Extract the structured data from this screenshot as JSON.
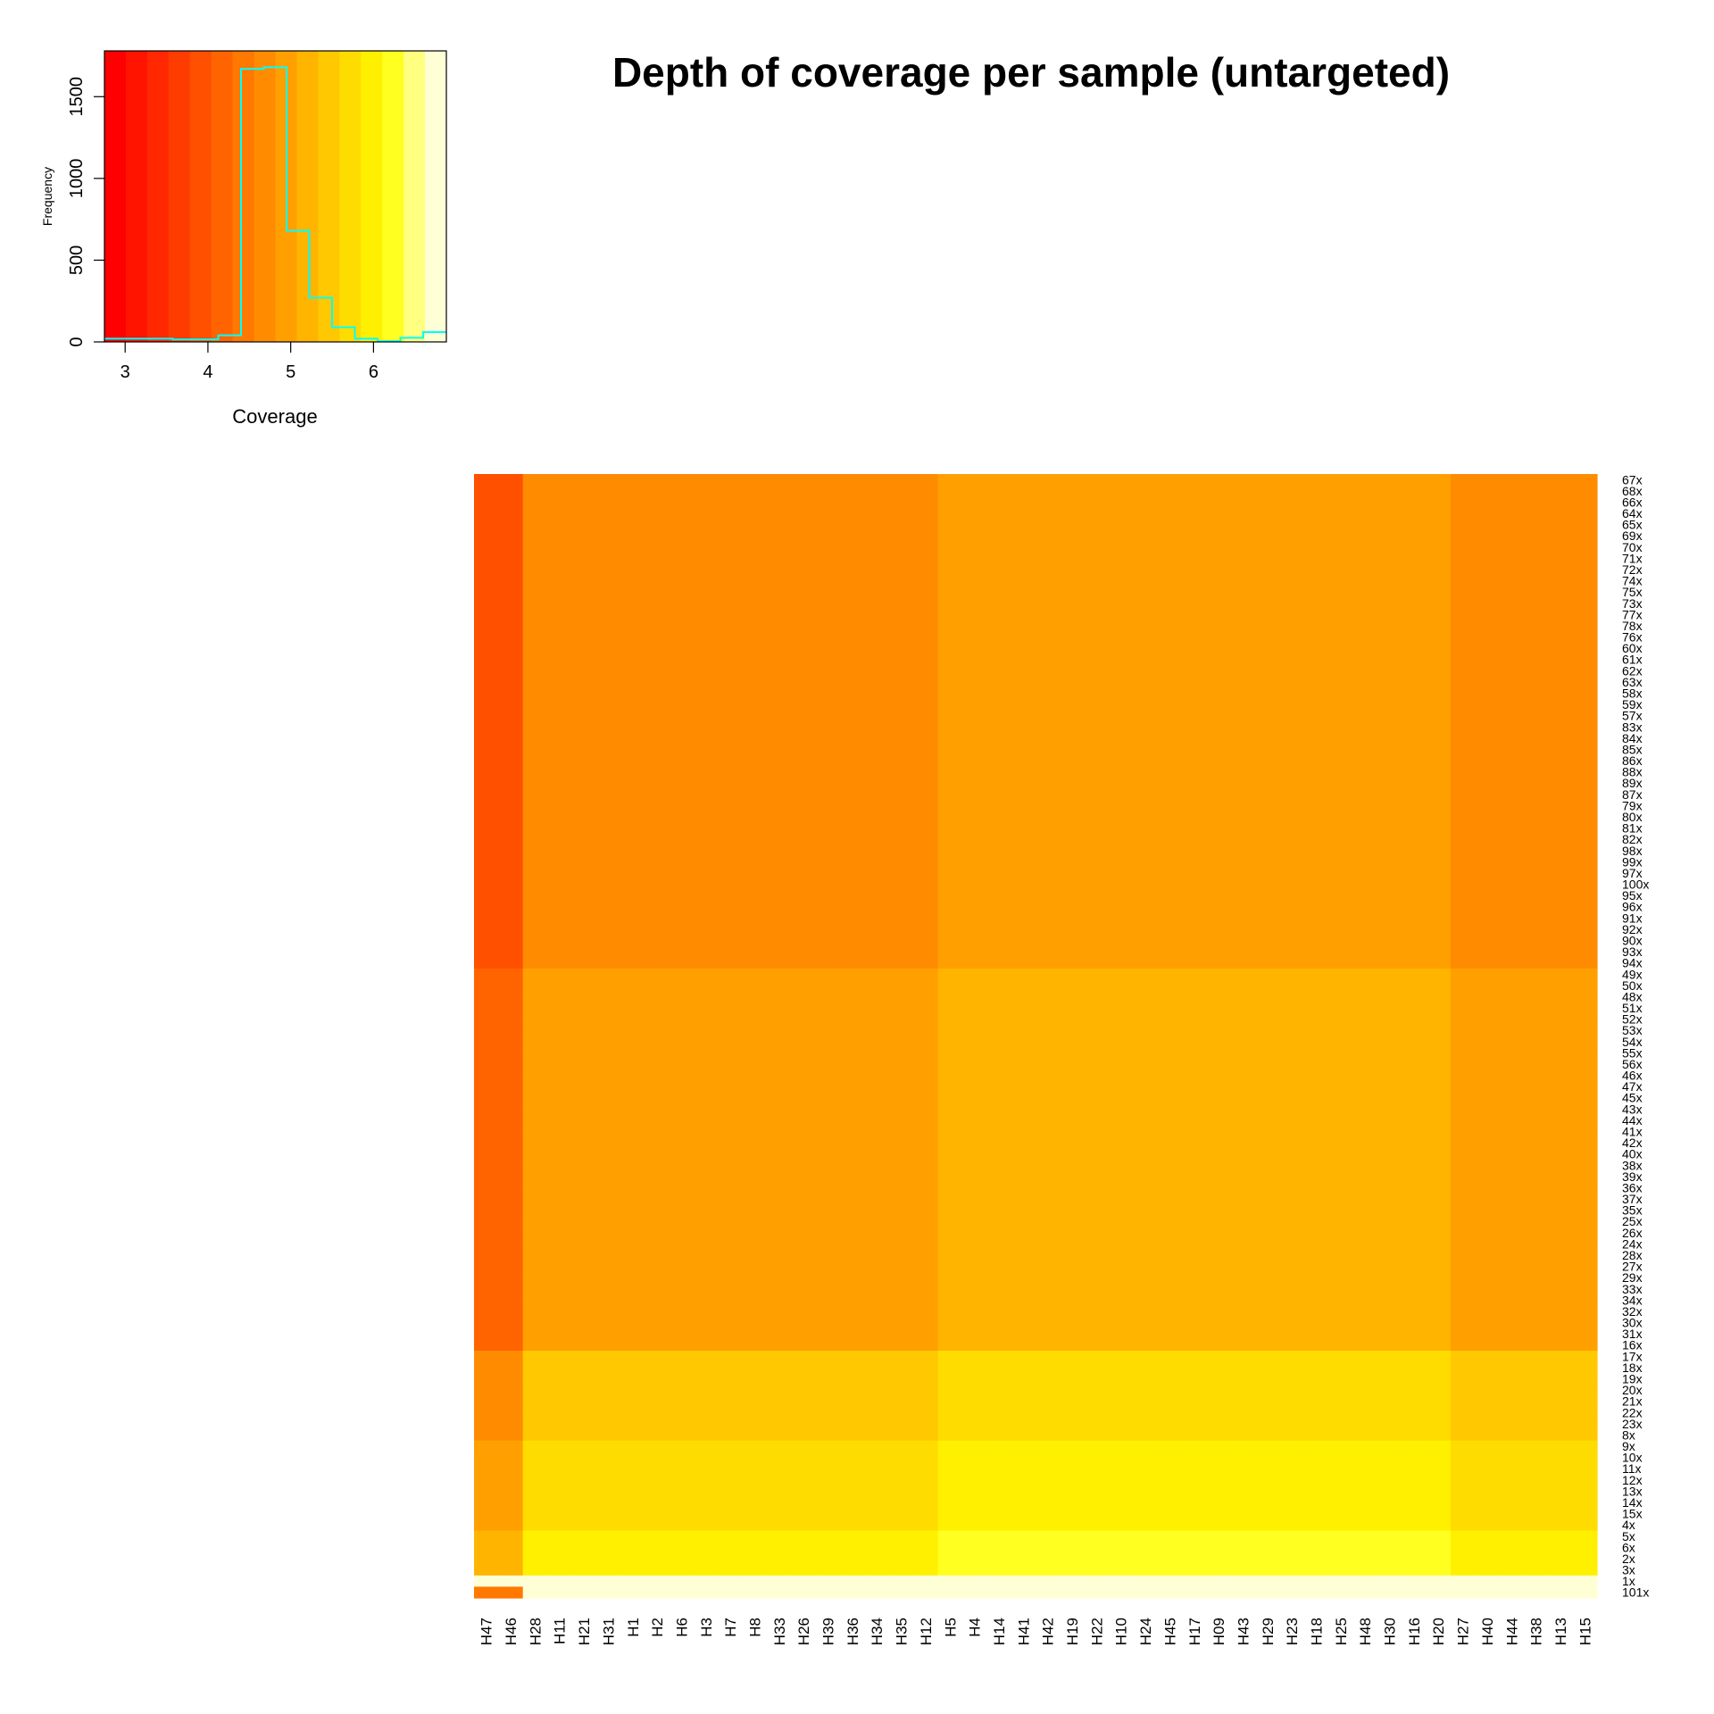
{
  "chart_data": [
    {
      "type": "bar",
      "title": "",
      "xlabel": "Coverage",
      "ylabel": "Frequency",
      "xlim": [
        2.75,
        6.88
      ],
      "ylim": [
        0,
        1780
      ],
      "x_ticks": [
        "3",
        "4",
        "5",
        "6"
      ],
      "y_ticks": [
        "0",
        "500",
        "1000",
        "1500"
      ],
      "histogram_bins": [
        2.75,
        3.025,
        3.3,
        3.575,
        3.85,
        4.125,
        4.4,
        4.675,
        4.95,
        5.225,
        5.5,
        5.775,
        6.05,
        6.325,
        6.6,
        6.88
      ],
      "histogram_counts": [
        20,
        20,
        20,
        15,
        15,
        40,
        1670,
        1680,
        680,
        270,
        90,
        20,
        5,
        25,
        60
      ],
      "color_scale": [
        "#FF0000",
        "#FF1400",
        "#FF2800",
        "#FF3C00",
        "#FF5000",
        "#FF6400",
        "#FF7800",
        "#FF8C00",
        "#FFA000",
        "#FFB400",
        "#FFC800",
        "#FFDC00",
        "#FFF000",
        "#FFFF20",
        "#FFFF80",
        "#FFFFD5"
      ],
      "histogram_line_color": "#00FFFF"
    },
    {
      "type": "heatmap",
      "title": "Depth of coverage per sample (untargeted)",
      "columns": [
        "H47",
        "H46",
        "H28",
        "H11",
        "H21",
        "H31",
        "H1",
        "H2",
        "H6",
        "H3",
        "H7",
        "H8",
        "H33",
        "H26",
        "H39",
        "H36",
        "H34",
        "H35",
        "H12",
        "H5",
        "H4",
        "H14",
        "H41",
        "H42",
        "H19",
        "H22",
        "H10",
        "H24",
        "H45",
        "H17",
        "H09",
        "H43",
        "H29",
        "H23",
        "H18",
        "H25",
        "H48",
        "H30",
        "H16",
        "H20",
        "H27",
        "H40",
        "H44",
        "H38",
        "H13",
        "H15"
      ],
      "rows": [
        "67x",
        "68x",
        "66x",
        "64x",
        "65x",
        "69x",
        "70x",
        "71x",
        "72x",
        "74x",
        "75x",
        "73x",
        "77x",
        "78x",
        "76x",
        "60x",
        "61x",
        "62x",
        "63x",
        "58x",
        "59x",
        "57x",
        "83x",
        "84x",
        "85x",
        "86x",
        "88x",
        "89x",
        "87x",
        "79x",
        "80x",
        "81x",
        "82x",
        "98x",
        "99x",
        "97x",
        "100x",
        "95x",
        "96x",
        "91x",
        "92x",
        "90x",
        "93x",
        "94x",
        "49x",
        "50x",
        "48x",
        "51x",
        "52x",
        "53x",
        "54x",
        "55x",
        "56x",
        "46x",
        "47x",
        "45x",
        "43x",
        "44x",
        "41x",
        "42x",
        "40x",
        "38x",
        "39x",
        "36x",
        "37x",
        "35x",
        "25x",
        "26x",
        "24x",
        "28x",
        "27x",
        "29x",
        "33x",
        "34x",
        "32x",
        "30x",
        "31x",
        "16x",
        "17x",
        "18x",
        "19x",
        "20x",
        "21x",
        "22x",
        "23x",
        "8x",
        "9x",
        "10x",
        "11x",
        "12x",
        "13x",
        "14x",
        "15x",
        "4x",
        "5x",
        "6x",
        "2x",
        "3x",
        "1x",
        "101x"
      ],
      "color_scale": [
        "#FF0000",
        "#FF1400",
        "#FF2800",
        "#FF3C00",
        "#FF5000",
        "#FF6400",
        "#FF7800",
        "#FF8C00",
        "#FFA000",
        "#FFB400",
        "#FFC800",
        "#FFDC00",
        "#FFF000",
        "#FFFF20",
        "#FFFF80",
        "#FFFFD5"
      ],
      "value_range": [
        2.75,
        6.88
      ]
    }
  ]
}
